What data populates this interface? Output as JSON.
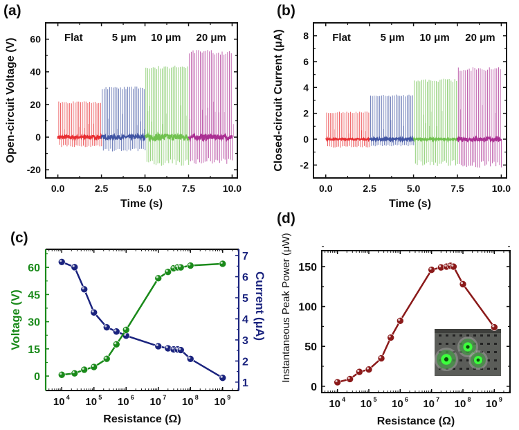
{
  "figure": {
    "panel_labels": [
      "(a)",
      "(b)",
      "(c)",
      "(d)"
    ]
  },
  "chart_data": [
    {
      "id": "a",
      "type": "line",
      "title": "",
      "xlabel": "Time (s)",
      "ylabel": "Open-circuit Voltage (V)",
      "xlim": [
        -0.7,
        10.3
      ],
      "ylim": [
        -25,
        70
      ],
      "xticks": [
        0.0,
        2.5,
        5.0,
        7.5,
        10.0
      ],
      "xtick_labels": [
        "0.0",
        "2.5",
        "5.0",
        "7.5",
        "10.0"
      ],
      "yticks": [
        -20,
        0,
        20,
        40,
        60
      ],
      "ytick_labels": [
        "-20",
        "0",
        "20",
        "40",
        "60"
      ],
      "grid": false,
      "annotations": [
        "Flat",
        "5 μm",
        "10 μm",
        "20 μm"
      ],
      "series": [
        {
          "name": "Flat",
          "color": "#e8272b",
          "t_range": [
            0.0,
            2.5
          ],
          "pulses": 24,
          "peak": 21.5,
          "trough": -5.5,
          "baseline_noise": 1.0
        },
        {
          "name": "5 μm",
          "color": "#3a4fa0",
          "t_range": [
            2.5,
            5.0
          ],
          "pulses": 24,
          "peak": 30.5,
          "trough": -8,
          "baseline_noise": 1.2
        },
        {
          "name": "10 μm",
          "color": "#6cc04a",
          "t_range": [
            5.0,
            7.5
          ],
          "pulses": 24,
          "peak": 43,
          "trough": -16,
          "baseline_noise": 2.0
        },
        {
          "name": "20 μm",
          "color": "#a8288f",
          "t_range": [
            7.5,
            10.0
          ],
          "pulses": 24,
          "peak": 52.5,
          "trough": -15,
          "baseline_noise": 1.5
        }
      ]
    },
    {
      "id": "b",
      "type": "line",
      "title": "",
      "xlabel": "Time (s)",
      "ylabel": "Closed-circuit Current (μA)",
      "xlim": [
        -0.7,
        10.3
      ],
      "ylim": [
        -3,
        9
      ],
      "xticks": [
        0.0,
        2.5,
        5.0,
        7.5,
        10.0
      ],
      "xtick_labels": [
        "0.0",
        "2.5",
        "5.0",
        "7.5",
        "10.0"
      ],
      "yticks": [
        -2,
        0,
        2,
        4,
        6,
        8
      ],
      "ytick_labels": [
        "-2",
        "0",
        "2",
        "4",
        "6",
        "8"
      ],
      "grid": false,
      "annotations": [
        "Flat",
        "5 μm",
        "10 μm",
        "20 μm"
      ],
      "series": [
        {
          "name": "Flat",
          "color": "#e8272b",
          "t_range": [
            0.0,
            2.5
          ],
          "pulses": 24,
          "peak": 2.1,
          "trough": -0.6,
          "baseline_noise": 0.05
        },
        {
          "name": "5 μm",
          "color": "#3a4fa0",
          "t_range": [
            2.5,
            5.0
          ],
          "pulses": 24,
          "peak": 3.4,
          "trough": -0.5,
          "baseline_noise": 0.08
        },
        {
          "name": "10 μm",
          "color": "#6cc04a",
          "t_range": [
            5.0,
            7.5
          ],
          "pulses": 24,
          "peak": 4.6,
          "trough": -1.9,
          "baseline_noise": 0.06
        },
        {
          "name": "20 μm",
          "color": "#a8288f",
          "t_range": [
            7.5,
            10.0
          ],
          "pulses": 24,
          "peak": 5.5,
          "trough": -2.0,
          "baseline_noise": 0.15
        }
      ]
    },
    {
      "id": "c",
      "type": "line",
      "title": "",
      "xlabel": "Resistance (Ω)",
      "xscale": "log",
      "xlim_exp": [
        3.5,
        9.5
      ],
      "xticks_exp": [
        4,
        5,
        6,
        7,
        8,
        9
      ],
      "xtick_labels": [
        "10",
        "10",
        "10",
        "10",
        "10",
        "10"
      ],
      "xtick_sup": [
        "4",
        "5",
        "6",
        "7",
        "8",
        "9"
      ],
      "grid": false,
      "y_left": {
        "label": "Voltage (V)",
        "color": "#1a8a1a",
        "ylim": [
          -8,
          70
        ],
        "ticks": [
          0,
          15,
          30,
          45,
          60
        ],
        "tick_labels": [
          "0",
          "15",
          "30",
          "45",
          "60"
        ]
      },
      "y_right": {
        "label": "Current (μA)",
        "color": "#1a237e",
        "ylim": [
          0.6,
          7.3
        ],
        "ticks": [
          1,
          2,
          3,
          4,
          5,
          6,
          7
        ],
        "tick_labels": [
          "1",
          "2",
          "3",
          "4",
          "5",
          "6",
          "7"
        ]
      },
      "x": [
        10000.0,
        25000.0,
        50000.0,
        100000.0,
        250000.0,
        500000.0,
        1000000.0,
        10000000.0,
        20000000.0,
        30000000.0,
        40000000.0,
        50000000.0,
        100000000.0,
        1000000000.0
      ],
      "series": [
        {
          "name": "Voltage",
          "axis": "left",
          "color": "#1a8a1a",
          "values": [
            0.7,
            1.5,
            3.5,
            5,
            9.5,
            17.5,
            25.5,
            54,
            57.5,
            59.5,
            60,
            60,
            61,
            62
          ]
        },
        {
          "name": "Current",
          "axis": "right",
          "color": "#1a237e",
          "values": [
            6.7,
            6.45,
            5.4,
            4.3,
            3.6,
            3.4,
            3.2,
            2.7,
            2.6,
            2.55,
            2.55,
            2.52,
            2.1,
            1.2
          ]
        }
      ]
    },
    {
      "id": "d",
      "type": "line",
      "title": "",
      "xlabel": "Resistance (Ω)",
      "ylabel": "Instantaneous Peak Power (μW)",
      "xscale": "log",
      "xlim_exp": [
        3.5,
        9.5
      ],
      "xticks_exp": [
        4,
        5,
        6,
        7,
        8,
        9
      ],
      "xtick_labels": [
        "10",
        "10",
        "10",
        "10",
        "10",
        "10"
      ],
      "xtick_sup": [
        "4",
        "5",
        "6",
        "7",
        "8",
        "9"
      ],
      "ylim": [
        -8,
        170
      ],
      "yticks": [
        0,
        50,
        100,
        150
      ],
      "ytick_labels": [
        "0",
        "50",
        "100",
        "150"
      ],
      "grid": false,
      "inset": "photo of three green glowing LEDs",
      "x": [
        10000.0,
        25000.0,
        50000.0,
        100000.0,
        250000.0,
        500000.0,
        1000000.0,
        10000000.0,
        20000000.0,
        30000000.0,
        40000000.0,
        50000000.0,
        100000000.0,
        1000000000.0
      ],
      "series": [
        {
          "name": "Peak Power",
          "color": "#8b1a1a",
          "values": [
            5,
            9,
            18,
            21,
            35,
            61,
            82,
            146,
            149,
            150,
            151,
            150,
            128,
            74
          ]
        }
      ]
    }
  ]
}
